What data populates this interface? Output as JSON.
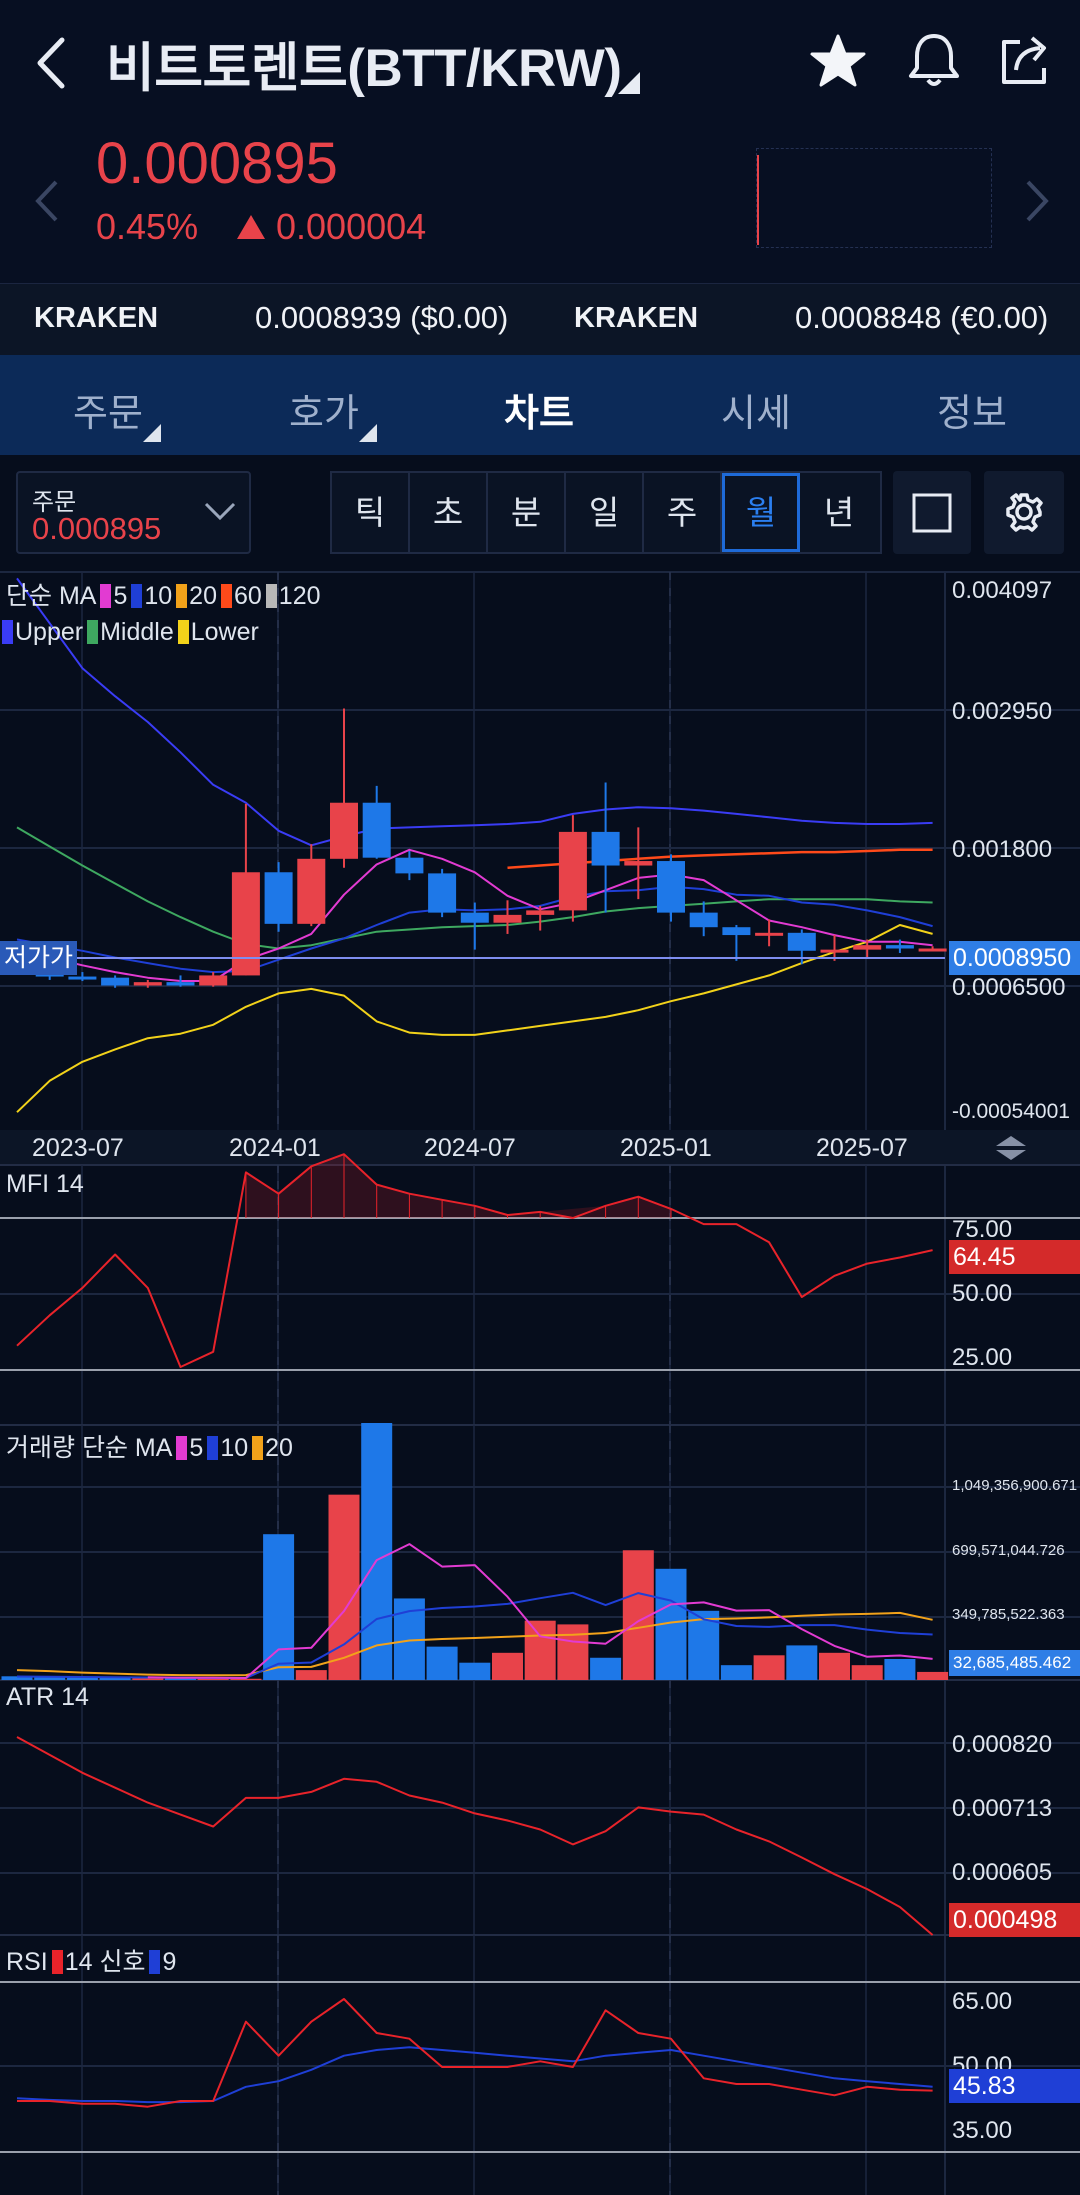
{
  "header": {
    "title": "비트토렌트(BTT/KRW)",
    "actions": [
      "star-icon",
      "bell-icon",
      "share-icon"
    ]
  },
  "quote": {
    "price": "0.000895",
    "change_pct": "0.45%",
    "change_abs": "0.000004",
    "direction": "up",
    "color_up": "#e8434a"
  },
  "exchanges": [
    {
      "name": "KRAKEN",
      "value": "0.0008939 ($0.00)"
    },
    {
      "name": "KRAKEN",
      "value": "0.0008848 (€0.00)"
    }
  ],
  "tabs": [
    "주문",
    "호가",
    "차트",
    "시세",
    "정보"
  ],
  "active_tab": "차트",
  "order": {
    "label": "주문",
    "value": "0.000895"
  },
  "periods": [
    "틱",
    "초",
    "분",
    "일",
    "주",
    "월",
    "년"
  ],
  "active_period": "월",
  "price_chart": {
    "legend_ma": {
      "label": "단순 MA",
      "items": [
        {
          "n": "5",
          "color": "#e23bd2"
        },
        {
          "n": "10",
          "color": "#1f3fd6"
        },
        {
          "n": "20",
          "color": "#f2a21a"
        },
        {
          "n": "60",
          "color": "#ff4a1a"
        },
        {
          "n": "120",
          "color": "#b8b8b8"
        }
      ]
    },
    "legend_bb": [
      {
        "name": "Upper",
        "color": "#3a3cf5"
      },
      {
        "name": "Middle",
        "color": "#3ea860"
      },
      {
        "name": "Lower",
        "color": "#f2d21a"
      }
    ],
    "y_labels": [
      "0.004097",
      "0.002950",
      "0.001800",
      "0.0006500",
      "-0.00054001"
    ],
    "current_tag": "0.0008950",
    "low_tag": "저가가",
    "x_labels": [
      "2023-07",
      "2024-01",
      "2024-07",
      "2025-01",
      "2025-07"
    ]
  },
  "mfi": {
    "label": "MFI 14",
    "y_labels": [
      "75.00",
      "50.00",
      "25.00"
    ],
    "current": "64.45"
  },
  "volume": {
    "label": "거래량 단순 MA",
    "legend": [
      {
        "n": "5",
        "color": "#e23bd2"
      },
      {
        "n": "10",
        "color": "#1f3fd6"
      },
      {
        "n": "20",
        "color": "#f2a21a"
      }
    ],
    "y_labels": [
      "1,049,356,900.671",
      "699,571,044.726",
      "349,785,522.363"
    ],
    "current": "32,685,485.462"
  },
  "atr": {
    "label": "ATR 14",
    "y_labels": [
      "0.000820",
      "0.000713",
      "0.000605"
    ],
    "current": "0.000498"
  },
  "rsi": {
    "label": "RSI",
    "legend": [
      {
        "n": "14 신호",
        "color": "#e8232a"
      },
      {
        "n": "9",
        "color": "#1f3fd6"
      }
    ],
    "y_labels": [
      "65.00",
      "50.00",
      "35.00"
    ],
    "current": "45.83"
  },
  "chart_data": {
    "type": "candlestick",
    "x": [
      "2023-05",
      "2023-06",
      "2023-07",
      "2023-08",
      "2023-09",
      "2023-10",
      "2023-11",
      "2023-12",
      "2024-01",
      "2024-02",
      "2024-03",
      "2024-04",
      "2024-05",
      "2024-06",
      "2024-07",
      "2024-08",
      "2024-09",
      "2024-10",
      "2024-11",
      "2024-12",
      "2025-01",
      "2025-02",
      "2025-03",
      "2025-04",
      "2025-05",
      "2025-06",
      "2025-07",
      "2025-08",
      "2025-09"
    ],
    "candles": [
      {
        "o": 0.00092,
        "h": 0.00095,
        "l": 0.00068,
        "c": 0.00072
      },
      {
        "o": 0.00072,
        "h": 0.00076,
        "l": 0.00062,
        "c": 0.00065
      },
      {
        "o": 0.00065,
        "h": 0.00069,
        "l": 0.00061,
        "c": 0.00064
      },
      {
        "o": 0.00064,
        "h": 0.00066,
        "l": 0.00055,
        "c": 0.00057
      },
      {
        "o": 0.00057,
        "h": 0.00062,
        "l": 0.00055,
        "c": 0.0006
      },
      {
        "o": 0.0006,
        "h": 0.00066,
        "l": 0.00056,
        "c": 0.00057
      },
      {
        "o": 0.00057,
        "h": 0.00069,
        "l": 0.00056,
        "c": 0.00066
      },
      {
        "o": 0.00066,
        "h": 0.00219,
        "l": 0.00066,
        "c": 0.00158
      },
      {
        "o": 0.00158,
        "h": 0.00167,
        "l": 0.00105,
        "c": 0.00112
      },
      {
        "o": 0.00112,
        "h": 0.00183,
        "l": 0.0011,
        "c": 0.0017
      },
      {
        "o": 0.0017,
        "h": 0.00304,
        "l": 0.00162,
        "c": 0.0022
      },
      {
        "o": 0.0022,
        "h": 0.00235,
        "l": 0.0017,
        "c": 0.00171
      },
      {
        "o": 0.00171,
        "h": 0.00177,
        "l": 0.00151,
        "c": 0.00157
      },
      {
        "o": 0.00157,
        "h": 0.00161,
        "l": 0.00118,
        "c": 0.00122
      },
      {
        "o": 0.00122,
        "h": 0.00131,
        "l": 0.00089,
        "c": 0.00113
      },
      {
        "o": 0.00113,
        "h": 0.00133,
        "l": 0.00103,
        "c": 0.0012
      },
      {
        "o": 0.0012,
        "h": 0.00128,
        "l": 0.00106,
        "c": 0.00124
      },
      {
        "o": 0.00124,
        "h": 0.00209,
        "l": 0.00114,
        "c": 0.00194
      },
      {
        "o": 0.00194,
        "h": 0.00238,
        "l": 0.00122,
        "c": 0.00164
      },
      {
        "o": 0.00164,
        "h": 0.00198,
        "l": 0.00134,
        "c": 0.00168
      },
      {
        "o": 0.00168,
        "h": 0.00174,
        "l": 0.00114,
        "c": 0.00122
      },
      {
        "o": 0.00122,
        "h": 0.00132,
        "l": 0.00101,
        "c": 0.00109
      },
      {
        "o": 0.00109,
        "h": 0.00111,
        "l": 0.00079,
        "c": 0.00102
      },
      {
        "o": 0.00102,
        "h": 0.00116,
        "l": 0.00092,
        "c": 0.00104
      },
      {
        "o": 0.00104,
        "h": 0.00107,
        "l": 0.00076,
        "c": 0.00088
      },
      {
        "o": 0.00088,
        "h": 0.00102,
        "l": 0.00079,
        "c": 0.00089
      },
      {
        "o": 0.00089,
        "h": 0.00098,
        "l": 0.00082,
        "c": 0.00093
      },
      {
        "o": 0.00093,
        "h": 0.00098,
        "l": 0.00086,
        "c": 0.0009
      },
      {
        "o": 0.0009,
        "h": 0.00092,
        "l": 0.00089,
        "c": 0.0009
      }
    ],
    "bb_upper": [
      0.0042,
      0.0038,
      0.0034,
      0.00315,
      0.00292,
      0.00265,
      0.00236,
      0.0022,
      0.00195,
      0.00182,
      0.0019,
      0.00197,
      0.00198,
      0.00199,
      0.002,
      0.00201,
      0.00203,
      0.0021,
      0.00214,
      0.00216,
      0.00215,
      0.00213,
      0.0021,
      0.00207,
      0.00204,
      0.00202,
      0.00201,
      0.00201,
      0.00202
    ],
    "bb_middle": [
      0.00198,
      0.00181,
      0.00164,
      0.00148,
      0.00132,
      0.00118,
      0.00105,
      0.00094,
      0.0009,
      0.00093,
      0.00099,
      0.00105,
      0.00107,
      0.00109,
      0.0011,
      0.00111,
      0.00114,
      0.00118,
      0.00123,
      0.00126,
      0.00128,
      0.0013,
      0.00132,
      0.00134,
      0.00134,
      0.00134,
      0.00134,
      0.00132,
      0.00131
    ],
    "bb_lower": [
      -0.00056,
      -0.00028,
      -0.00011,
      0.0,
      0.0001,
      0.00014,
      0.00022,
      0.00038,
      0.0005,
      0.00054,
      0.00048,
      0.00025,
      0.00015,
      0.00013,
      0.00013,
      0.00017,
      0.00021,
      0.00025,
      0.00029,
      0.00035,
      0.00043,
      0.0005,
      0.00058,
      0.00066,
      0.00077,
      0.00087,
      0.00096,
      0.00111,
      0.00103
    ],
    "ma5": [
      0.0009,
      0.00082,
      0.00075,
      0.00069,
      0.00064,
      0.00061,
      0.00061,
      0.0008,
      0.0009,
      0.00103,
      0.00138,
      0.00165,
      0.00178,
      0.0017,
      0.00158,
      0.00137,
      0.00125,
      0.00131,
      0.00142,
      0.00153,
      0.00156,
      0.00151,
      0.00133,
      0.00115,
      0.00109,
      0.00102,
      0.00096,
      0.00096,
      0.00093
    ],
    "ma10": [
      0.00098,
      0.00093,
      0.00088,
      0.00082,
      0.00077,
      0.00072,
      0.00069,
      0.0007,
      0.0008,
      0.0009,
      0.00099,
      0.00111,
      0.00122,
      0.00125,
      0.00124,
      0.00125,
      0.00128,
      0.00136,
      0.00141,
      0.00142,
      0.00145,
      0.00143,
      0.00138,
      0.00137,
      0.00131,
      0.00129,
      0.00124,
      0.00118,
      0.0011
    ],
    "ma60": [
      null,
      null,
      null,
      null,
      null,
      null,
      null,
      null,
      null,
      null,
      null,
      null,
      null,
      null,
      null,
      0.00162,
      0.00164,
      0.00166,
      0.00168,
      0.0017,
      0.00172,
      0.00173,
      0.00174,
      0.00175,
      0.00176,
      0.00176,
      0.00177,
      0.00178,
      0.00178
    ],
    "mfi": [
      33,
      43,
      52,
      63,
      52,
      26,
      31,
      90,
      83,
      92,
      96,
      86,
      83,
      81,
      79,
      76,
      77,
      75,
      79,
      82,
      78,
      73,
      73,
      67,
      49,
      56,
      60,
      62,
      64.45
    ],
    "volume": [
      15,
      12,
      10,
      11,
      8,
      6,
      10,
      5,
      590,
      40,
      750,
      1040,
      330,
      135,
      70,
      110,
      240,
      225,
      90,
      525,
      450,
      280,
      60,
      100,
      140,
      110,
      60,
      85,
      32.7
    ],
    "volume_unit": "millions",
    "atr": [
      0.00083,
      0.0008,
      0.00077,
      0.000745,
      0.00072,
      0.0007,
      0.00068,
      0.000728,
      0.000728,
      0.000738,
      0.00076,
      0.000755,
      0.000732,
      0.00072,
      0.000702,
      0.00069,
      0.000675,
      0.00065,
      0.000672,
      0.000712,
      0.000705,
      0.0007,
      0.000675,
      0.000655,
      0.000628,
      0.0006,
      0.000575,
      0.000545,
      0.000498
    ],
    "rsi": [
      44,
      44,
      43.5,
      43.5,
      43,
      44,
      44,
      58,
      52,
      58,
      62,
      56,
      55,
      50,
      50,
      50,
      51,
      50,
      60,
      56,
      55,
      48,
      47,
      47,
      46,
      45,
      46.5,
      46,
      45.83
    ],
    "rsi_signal": [
      44.5,
      44.2,
      44,
      44,
      43.8,
      43.8,
      44,
      46.5,
      47.5,
      49.5,
      52,
      53,
      53.5,
      53,
      52.5,
      52,
      51.5,
      51,
      52,
      52.5,
      53,
      52,
      51,
      50,
      49,
      48,
      47.5,
      47,
      46.5
    ],
    "y_range": [
      -0.00054001,
      0.004097
    ],
    "mfi_range": [
      0,
      100
    ],
    "atr_range": [
      0.000498,
      0.00082
    ],
    "rsi_range": [
      30,
      70
    ]
  }
}
